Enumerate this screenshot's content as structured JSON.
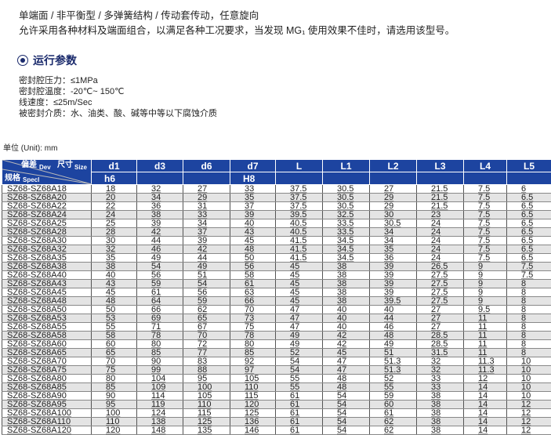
{
  "intro": [
    "单端面 / 非平衡型 / 多弹簧结构 / 传动套传动，任意旋向",
    "允许采用各种材料及端面组合，以满足各种工况要求，当发现 MG₁ 使用效果不佳时，请选用该型号。"
  ],
  "section_title": "运行参数",
  "params": [
    "密封腔压力：≤1MPa",
    "密封腔温度：-20℃~ 150℃",
    "线速度：≤25m/Sec",
    "被密封介质：水、油类、酸、碱等中等以下腐蚀介质"
  ],
  "unit": "单位 (Unit): mm",
  "corner": {
    "dev": "偏差",
    "dev_en": "Dev",
    "size": "尺寸",
    "size_en": "Size",
    "spec": "规格",
    "spec_en": "Specl"
  },
  "columns": [
    "d1",
    "d3",
    "d6",
    "d7",
    "L",
    "L1",
    "L2",
    "L3",
    "L4",
    "L5"
  ],
  "tolerances": [
    "h6",
    "",
    "",
    "H8",
    "",
    "",
    "",
    "",
    "",
    ""
  ],
  "rows": [
    [
      "SZ68-SZ68A18",
      "18",
      "32",
      "27",
      "33",
      "37.5",
      "30.5",
      "27",
      "21.5",
      "7.5",
      "6"
    ],
    [
      "SZ68-SZ68A20",
      "20",
      "34",
      "29",
      "35",
      "37.5",
      "30.5",
      "29",
      "21.5",
      "7.5",
      "6.5"
    ],
    [
      "SZ68-SZ68A22",
      "22",
      "36",
      "31",
      "37",
      "37.5",
      "30.5",
      "29",
      "21.5",
      "7.5",
      "6.5"
    ],
    [
      "SZ68-SZ68A24",
      "24",
      "38",
      "33",
      "39",
      "39.5",
      "32.5",
      "30",
      "23",
      "7.5",
      "6.5"
    ],
    [
      "SZ68-SZ68A25",
      "25",
      "39",
      "34",
      "40",
      "40.5",
      "33.5",
      "30.5",
      "24",
      "7.5",
      "6.5"
    ],
    [
      "SZ68-SZ68A28",
      "28",
      "42",
      "37",
      "43",
      "40.5",
      "33.5",
      "34",
      "24",
      "7.5",
      "6.5"
    ],
    [
      "SZ68-SZ68A30",
      "30",
      "44",
      "39",
      "45",
      "41.5",
      "34.5",
      "34",
      "24",
      "7.5",
      "6.5"
    ],
    [
      "SZ68-SZ68A32",
      "32",
      "46",
      "42",
      "48",
      "41.5",
      "34.5",
      "35",
      "24",
      "7.5",
      "6.5"
    ],
    [
      "SZ68-SZ68A35",
      "35",
      "49",
      "44",
      "50",
      "41.5",
      "34.5",
      "36",
      "24",
      "7.5",
      "6.5"
    ],
    [
      "SZ68-SZ68A38",
      "38",
      "54",
      "49",
      "56",
      "45",
      "38",
      "39",
      "26.5",
      "9",
      "7.5"
    ],
    [
      "SZ68-SZ68A40",
      "40",
      "56",
      "51",
      "58",
      "45",
      "38",
      "39",
      "27.5",
      "9",
      "7.5"
    ],
    [
      "SZ68-SZ68A43",
      "43",
      "59",
      "54",
      "61",
      "45",
      "38",
      "39",
      "27.5",
      "9",
      "8"
    ],
    [
      "SZ68-SZ68A45",
      "45",
      "61",
      "56",
      "63",
      "45",
      "38",
      "39",
      "27.5",
      "9",
      "8"
    ],
    [
      "SZ68-SZ68A48",
      "48",
      "64",
      "59",
      "66",
      "45",
      "38",
      "39.5",
      "27.5",
      "9",
      "8"
    ],
    [
      "SZ68-SZ68A50",
      "50",
      "66",
      "62",
      "70",
      "47",
      "40",
      "40",
      "27",
      "9.5",
      "8"
    ],
    [
      "SZ68-SZ68A53",
      "53",
      "69",
      "65",
      "73",
      "47",
      "40",
      "44",
      "27",
      "11",
      "8"
    ],
    [
      "SZ68-SZ68A55",
      "55",
      "71",
      "67",
      "75",
      "47",
      "40",
      "46",
      "27",
      "11",
      "8"
    ],
    [
      "SZ68-SZ68A58",
      "58",
      "78",
      "70",
      "78",
      "49",
      "42",
      "48",
      "28.5",
      "11",
      "8"
    ],
    [
      "SZ68-SZ68A60",
      "60",
      "80",
      "72",
      "80",
      "49",
      "42",
      "49",
      "28.5",
      "11",
      "8"
    ],
    [
      "SZ68-SZ68A65",
      "65",
      "85",
      "77",
      "85",
      "52",
      "45",
      "51",
      "31.5",
      "11",
      "8"
    ],
    [
      "SZ68-SZ68A70",
      "70",
      "90",
      "83",
      "92",
      "54",
      "47",
      "51.3",
      "32",
      "11.3",
      "10"
    ],
    [
      "SZ68-SZ68A75",
      "75",
      "99",
      "88",
      "97",
      "54",
      "47",
      "51.3",
      "32",
      "11.3",
      "10"
    ],
    [
      "SZ68-SZ68A80",
      "80",
      "104",
      "95",
      "105",
      "55",
      "48",
      "52",
      "33",
      "12",
      "10"
    ],
    [
      "SZ68-SZ68A85",
      "85",
      "109",
      "100",
      "110",
      "55",
      "48",
      "55",
      "33",
      "14",
      "10"
    ],
    [
      "SZ68-SZ68A90",
      "90",
      "114",
      "105",
      "115",
      "61",
      "54",
      "59",
      "38",
      "14",
      "10"
    ],
    [
      "SZ68-SZ68A95",
      "95",
      "119",
      "110",
      "120",
      "61",
      "54",
      "60",
      "38",
      "14",
      "12"
    ],
    [
      "SZ68-SZ68A100",
      "100",
      "124",
      "115",
      "125",
      "61",
      "54",
      "61",
      "38",
      "14",
      "12"
    ],
    [
      "SZ68-SZ68A110",
      "110",
      "138",
      "125",
      "136",
      "61",
      "54",
      "62",
      "38",
      "14",
      "12"
    ],
    [
      "SZ68-SZ68A120",
      "120",
      "148",
      "135",
      "146",
      "61",
      "54",
      "62",
      "38",
      "14",
      "12"
    ]
  ],
  "colors": {
    "header": "#1d44a0",
    "section": "#1a2a6c",
    "alt_row": "#e4e4e4"
  }
}
